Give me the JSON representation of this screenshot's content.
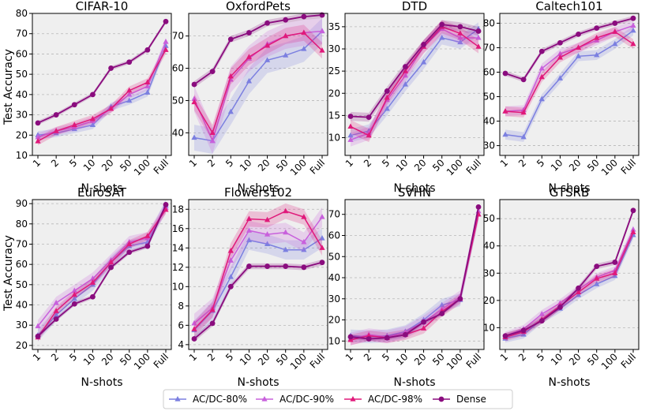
{
  "figure": {
    "ylabel": "Test Accuracy",
    "xlabel": "N-shots",
    "x_ticks": [
      "1",
      "2",
      "5",
      "10",
      "20",
      "50",
      "100",
      "Full"
    ]
  },
  "legend": {
    "entries": [
      {
        "label": "AC/DC-80%",
        "color": "#7b7fe0",
        "marker": "triangle"
      },
      {
        "label": "AC/DC-90%",
        "color": "#c860dc",
        "marker": "triangle"
      },
      {
        "label": "AC/DC-98%",
        "color": "#e0197a",
        "marker": "triangle"
      },
      {
        "label": "Dense",
        "color": "#8a0c7e",
        "marker": "circle"
      }
    ]
  },
  "chart_data": [
    {
      "type": "line",
      "title": "CIFAR-10",
      "ylim": [
        10,
        80
      ],
      "yticks": [
        10,
        20,
        30,
        40,
        50,
        60,
        70,
        80
      ],
      "series": [
        {
          "name": "AC/DC-80%",
          "values": [
            20,
            21,
            23,
            25,
            34,
            37,
            41,
            64
          ],
          "band": 2.0
        },
        {
          "name": "AC/DC-90%",
          "values": [
            19,
            22,
            24,
            27,
            33,
            40,
            44,
            66
          ],
          "band": 2.0
        },
        {
          "name": "AC/DC-98%",
          "values": [
            17,
            22,
            25,
            28,
            33,
            42,
            46,
            62
          ],
          "band": 2.0
        },
        {
          "name": "Dense",
          "values": [
            26,
            30,
            35,
            40,
            53,
            56,
            62,
            76
          ],
          "band": 1.0
        }
      ]
    },
    {
      "type": "line",
      "title": "OxfordPets",
      "ylim": [
        33,
        77
      ],
      "yticks": [
        40,
        50,
        60,
        70
      ],
      "series": [
        {
          "name": "AC/DC-80%",
          "values": [
            38.5,
            37.5,
            46.5,
            56,
            62.5,
            64,
            66,
            71.5
          ],
          "band": 4.0
        },
        {
          "name": "AC/DC-90%",
          "values": [
            50.5,
            37.5,
            56.5,
            63,
            67.5,
            70,
            71,
            71.5
          ],
          "band": 4.0
        },
        {
          "name": "AC/DC-98%",
          "values": [
            49.5,
            40,
            57.5,
            63.5,
            67,
            70,
            71,
            65.5
          ],
          "band": 2.5
        },
        {
          "name": "Dense",
          "values": [
            55,
            59,
            69,
            71,
            74,
            75,
            76,
            76.5
          ],
          "band": 1.0
        }
      ]
    },
    {
      "type": "line",
      "title": "DTD",
      "ylim": [
        6,
        38
      ],
      "yticks": [
        10,
        15,
        20,
        25,
        30,
        35
      ],
      "series": [
        {
          "name": "AC/DC-80%",
          "values": [
            10.5,
            11.5,
            16.5,
            22,
            27,
            32.5,
            31.5,
            34.5
          ],
          "band": 1.5
        },
        {
          "name": "AC/DC-90%",
          "values": [
            9.5,
            11,
            18.5,
            24,
            30.5,
            34.5,
            32.5,
            32.5
          ],
          "band": 1.5
        },
        {
          "name": "AC/DC-98%",
          "values": [
            12.5,
            10.5,
            19,
            25,
            30.5,
            35,
            33.5,
            30.5
          ],
          "band": 1.5
        },
        {
          "name": "Dense",
          "values": [
            14.8,
            14.6,
            20.5,
            26,
            31,
            35.5,
            35,
            34
          ],
          "band": 1.0
        }
      ]
    },
    {
      "type": "line",
      "title": "Caltech101",
      "ylim": [
        26,
        84
      ],
      "yticks": [
        30,
        40,
        50,
        60,
        70,
        80
      ],
      "series": [
        {
          "name": "AC/DC-80%",
          "values": [
            34.5,
            33.5,
            49,
            57.5,
            66.5,
            67,
            71.5,
            77
          ],
          "band": 2.0
        },
        {
          "name": "AC/DC-90%",
          "values": [
            44,
            44.5,
            61.5,
            67.5,
            70,
            73,
            76.5,
            79
          ],
          "band": 2.0
        },
        {
          "name": "AC/DC-98%",
          "values": [
            44,
            43.5,
            58,
            66,
            70,
            74,
            76.5,
            71.5
          ],
          "band": 2.0
        },
        {
          "name": "Dense",
          "values": [
            59.5,
            57,
            68.5,
            72,
            75.5,
            78,
            80,
            82
          ],
          "band": 1.0
        }
      ]
    },
    {
      "type": "line",
      "title": "EuroSAT",
      "ylim": [
        18,
        92
      ],
      "yticks": [
        20,
        30,
        40,
        50,
        60,
        70,
        80,
        90
      ],
      "series": [
        {
          "name": "AC/DC-80%",
          "values": [
            25,
            35,
            43,
            50,
            61,
            69,
            71,
            89
          ],
          "band": 3.0
        },
        {
          "name": "AC/DC-90%",
          "values": [
            29.5,
            41,
            47,
            53,
            62,
            71,
            73,
            88
          ],
          "band": 3.0
        },
        {
          "name": "AC/DC-98%",
          "values": [
            24,
            37,
            45,
            51,
            61,
            70,
            74,
            87
          ],
          "band": 2.0
        },
        {
          "name": "Dense",
          "values": [
            24.5,
            33,
            40.5,
            44,
            58.5,
            66,
            69,
            89.5
          ],
          "band": 1.0
        }
      ]
    },
    {
      "type": "line",
      "title": "Flowers102",
      "ylim": [
        3.5,
        19
      ],
      "yticks": [
        4,
        6,
        8,
        10,
        12,
        14,
        16,
        18
      ],
      "series": [
        {
          "name": "AC/DC-80%",
          "values": [
            5.5,
            7.5,
            11,
            14.8,
            14.4,
            13.8,
            13.8,
            15
          ],
          "band": 1.0
        },
        {
          "name": "AC/DC-90%",
          "values": [
            6.2,
            7.8,
            12.7,
            15.8,
            15.4,
            15.6,
            14.6,
            17.2
          ],
          "band": 1.0
        },
        {
          "name": "AC/DC-98%",
          "values": [
            5.6,
            7.6,
            13.7,
            17,
            16.9,
            17.8,
            17.2,
            14
          ],
          "band": 0.8
        },
        {
          "name": "Dense",
          "values": [
            4.6,
            6.2,
            10,
            12.1,
            12.1,
            12.1,
            12,
            12.5
          ],
          "band": 0.3
        }
      ]
    },
    {
      "type": "line",
      "title": "SVHN",
      "ylim": [
        6,
        77
      ],
      "yticks": [
        10,
        20,
        30,
        40,
        50,
        60,
        70
      ],
      "series": [
        {
          "name": "AC/DC-80%",
          "values": [
            12.5,
            12,
            12.5,
            14.5,
            20,
            27,
            29.5,
            70
          ],
          "band": 3.0
        },
        {
          "name": "AC/DC-90%",
          "values": [
            11,
            13,
            12,
            14,
            19,
            25,
            31,
            71.5
          ],
          "band": 3.0
        },
        {
          "name": "AC/DC-98%",
          "values": [
            10.5,
            12.5,
            11.5,
            13,
            16,
            24,
            30,
            70
          ],
          "band": 2.5
        },
        {
          "name": "Dense",
          "values": [
            12,
            11,
            11.5,
            13,
            19,
            23,
            30,
            73.5
          ],
          "band": 1.0
        }
      ]
    },
    {
      "type": "line",
      "title": "GTSRB",
      "ylim": [
        2,
        57
      ],
      "yticks": [
        10,
        20,
        30,
        40,
        50
      ],
      "series": [
        {
          "name": "AC/DC-80%",
          "values": [
            6,
            7.5,
            13,
            17,
            22,
            26,
            29,
            44
          ],
          "band": 1.5
        },
        {
          "name": "AC/DC-90%",
          "values": [
            7,
            9.5,
            15,
            19,
            24,
            28.5,
            31,
            46
          ],
          "band": 1.5
        },
        {
          "name": "AC/DC-98%",
          "values": [
            6.5,
            8.5,
            13,
            18,
            23,
            28,
            30,
            45
          ],
          "band": 1.5
        },
        {
          "name": "Dense",
          "values": [
            7,
            9,
            12.5,
            17.5,
            24.5,
            32.5,
            34,
            53
          ],
          "band": 1.0
        }
      ]
    }
  ]
}
